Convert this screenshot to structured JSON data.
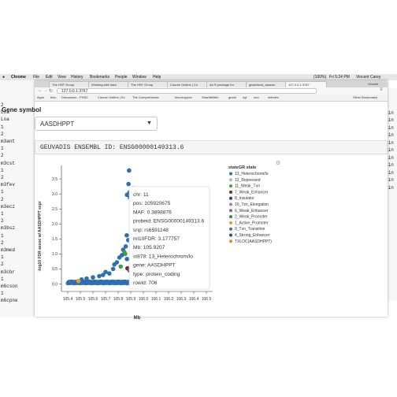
{
  "menubar": {
    "apple": "",
    "app": "Chrome",
    "items": [
      "File",
      "Edit",
      "View",
      "History",
      "Bookmarks",
      "People",
      "Window",
      "Help"
    ],
    "clock": "Fri 5:24 PM",
    "user": "Vincent Carey",
    "battery": "(100%)"
  },
  "browser": {
    "tabs": [
      "The HSF Group",
      "Working with data",
      "The HSF Group",
      "Course Outline | Co",
      "An R package for",
      "gbazbiocd_assess",
      "127.0.0.1:3767"
    ],
    "right_tab": "Vincent",
    "url": "127.0.0.1:3767",
    "bookmarks": [
      "Apps",
      "bioc",
      "Discussion - PHSC",
      "Course Outline | Ex",
      "The Comprehensiv",
      "bioc/support",
      "SharWeBeh",
      "gmail",
      "nyt",
      "neo",
      "mfindex",
      "Other Bookmarks"
    ]
  },
  "terminal": {
    "lines": [
      "2",
      "Loa",
      "Loa",
      "1",
      "2",
      "m3ant",
      "1",
      "2",
      "m3cst",
      "1",
      "2",
      "m3fev",
      "1",
      "2",
      "m3ecz",
      "1",
      "2",
      "m3bsz",
      "1",
      "2",
      "m3med",
      "1",
      "2",
      "m3cbr",
      "1",
      "m6cson",
      "1",
      "m6cpne"
    ],
    "right_lines": [
      "2",
      "gin",
      "gin",
      "gin",
      "gin",
      "gin",
      "gin",
      "gin",
      "gin",
      "gin",
      "gin",
      "gin"
    ]
  },
  "page": {
    "gene_label": "Gene symbol",
    "selected_gene": "AASDHPPT",
    "ensembl_text": "GEUVADIS ENSEMBL ID: ENSG00000149313.6"
  },
  "chart_data": {
    "type": "scatter",
    "title": "",
    "xlabel": "Mb",
    "ylabel": "-log10 FDR assoc w/ AASDHPPT expr",
    "xlim": [
      105.35,
      106.55
    ],
    "ylim": [
      -0.25,
      3.95
    ],
    "xticks": [
      "105.4",
      "105.5",
      "105.6",
      "105.7",
      "105.8",
      "105.9",
      "106.0",
      "106.1",
      "106.2",
      "106.3",
      "106.4",
      "106.5"
    ],
    "yticks": [
      "0.0",
      "0.5",
      "1.0",
      "1.5",
      "2.0",
      "2.5",
      "3.0",
      "3.5"
    ],
    "legend_title": "stateGR state",
    "legend": [
      {
        "label": "13_Heterochrom/lo",
        "color": "#2e6fb2"
      },
      {
        "label": "12_Repressed",
        "color": "#b3b3b3"
      },
      {
        "label": "11_Weak_Txn",
        "color": "#3ea04a"
      },
      {
        "label": "7_Weak_Enhancer",
        "color": "#7a2b1c"
      },
      {
        "label": "8_Insulator",
        "color": "#2e3f73"
      },
      {
        "label": "10_Txn_Elongation",
        "color": "#a87ab8"
      },
      {
        "label": "6_Weak_Enhancer",
        "color": "#8e5ea8"
      },
      {
        "label": "2_Weak_Promoter",
        "color": "#2f8c4c"
      },
      {
        "label": "1_Active_Promoter",
        "color": "#e0a030"
      },
      {
        "label": "9_Txn_Transition",
        "color": "#6a6a6a"
      },
      {
        "label": "4_Strong_Enhancer",
        "color": "#1f4e8c"
      },
      {
        "label": "TXLOC(AASDHPPT)",
        "color": "#e08a2a"
      }
    ],
    "points": [
      {
        "x": 105.8866,
        "y": 3.78,
        "state": 0
      },
      {
        "x": 105.882,
        "y": 3.33,
        "state": 0
      },
      {
        "x": 105.9207,
        "y": 3.18,
        "state": 0
      },
      {
        "x": 105.89,
        "y": 3.05,
        "state": 0
      },
      {
        "x": 105.87,
        "y": 2.97,
        "state": 0
      },
      {
        "x": 105.893,
        "y": 2.88,
        "state": 0
      },
      {
        "x": 105.868,
        "y": 1.62,
        "state": 0
      },
      {
        "x": 105.88,
        "y": 1.46,
        "state": 0
      },
      {
        "x": 105.86,
        "y": 1.25,
        "state": 0
      },
      {
        "x": 105.84,
        "y": 1.14,
        "state": 0
      },
      {
        "x": 105.85,
        "y": 1.05,
        "state": 2
      },
      {
        "x": 105.856,
        "y": 1.0,
        "state": 2
      },
      {
        "x": 105.83,
        "y": 0.96,
        "state": 0
      },
      {
        "x": 105.81,
        "y": 0.88,
        "state": 0
      },
      {
        "x": 105.87,
        "y": 0.83,
        "state": 0
      },
      {
        "x": 105.79,
        "y": 0.72,
        "state": 0
      },
      {
        "x": 105.77,
        "y": 0.65,
        "state": 0
      },
      {
        "x": 105.91,
        "y": 0.78,
        "state": 0
      },
      {
        "x": 105.93,
        "y": 0.6,
        "state": 0
      },
      {
        "x": 105.82,
        "y": 0.58,
        "state": 2
      },
      {
        "x": 105.874,
        "y": 0.52,
        "state": 3
      },
      {
        "x": 105.76,
        "y": 0.5,
        "state": 0
      },
      {
        "x": 105.89,
        "y": 0.45,
        "state": 0
      },
      {
        "x": 105.7,
        "y": 0.4,
        "state": 0
      },
      {
        "x": 105.73,
        "y": 0.35,
        "state": 0
      },
      {
        "x": 105.68,
        "y": 0.3,
        "state": 0
      },
      {
        "x": 105.65,
        "y": 0.26,
        "state": 0
      },
      {
        "x": 105.6,
        "y": 0.22,
        "state": 0
      },
      {
        "x": 105.55,
        "y": 0.18,
        "state": 0
      },
      {
        "x": 105.51,
        "y": 0.15,
        "state": 0
      },
      {
        "x": 105.485,
        "y": 0.1,
        "state": 8
      },
      {
        "x": 105.96,
        "y": 0.2,
        "state": 0
      },
      {
        "x": 105.98,
        "y": 0.17,
        "state": 0
      },
      {
        "x": 106.02,
        "y": 0.12,
        "state": 1
      },
      {
        "x": 106.1,
        "y": 0.1,
        "state": 1
      },
      {
        "x": 106.2,
        "y": 0.13,
        "state": 1
      },
      {
        "x": 106.3,
        "y": 0.11,
        "state": 1
      },
      {
        "x": 106.4,
        "y": 0.1,
        "state": 1
      },
      {
        "x": 106.48,
        "y": 0.12,
        "state": 1
      },
      {
        "x": 105.91,
        "y": -0.05,
        "state": 11
      }
    ],
    "tooltip": [
      "chr: 11",
      "pos: 105920675",
      "MAF: 0.3898876",
      "probeid: ENSG00000149313.6",
      "snp: rs6591148",
      "ml10FDR: 3.177757",
      "Mb: 105.9207",
      "st878: 13_Heterochrom/lo",
      "gene: AASDHPPT",
      "type: protein_coding",
      "rowid: 706"
    ]
  }
}
